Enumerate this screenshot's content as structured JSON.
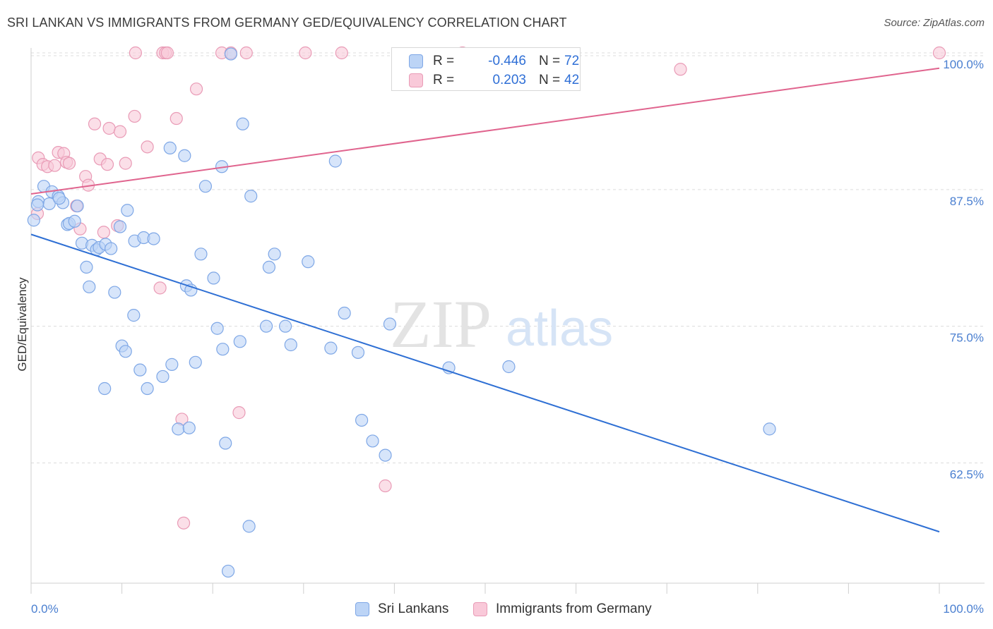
{
  "header": {
    "title": "SRI LANKAN VS IMMIGRANTS FROM GERMANY GED/EQUIVALENCY CORRELATION CHART",
    "source": "Source: ZipAtlas.com"
  },
  "watermark": {
    "zip": "ZIP",
    "atlas": "atlas"
  },
  "stats_legend": [
    {
      "r_label": "R =",
      "r_value": "-0.446",
      "n_label": "N =",
      "n_value": "72"
    },
    {
      "r_label": "R =",
      "r_value": "0.203",
      "n_label": "N =",
      "n_value": "42"
    }
  ],
  "bottom_legend": [
    {
      "label": "Sri Lankans"
    },
    {
      "label": "Immigrants from Germany"
    }
  ],
  "colors": {
    "blue_fill": "#bcd4f6",
    "blue_stroke": "#7ea7e6",
    "blue_line": "#2e6fd4",
    "pink_fill": "#f9c9d9",
    "pink_stroke": "#e99bb6",
    "pink_line": "#e0648e",
    "tick_label": "#4a7fd0"
  },
  "chart_data": {
    "type": "scatter",
    "title": "SRI LANKAN VS IMMIGRANTS FROM GERMANY GED/EQUIVALENCY CORRELATION CHART",
    "xlabel": "",
    "ylabel": "GED/Equivalency",
    "xlim": [
      0,
      100
    ],
    "ylim": [
      51.5,
      100
    ],
    "x_ticks": [
      "0.0%",
      "100.0%"
    ],
    "y_ticks": [
      {
        "value": 62.5,
        "label": "62.5%"
      },
      {
        "value": 75.0,
        "label": "75.0%"
      },
      {
        "value": 87.5,
        "label": "87.5%"
      },
      {
        "value": 100.0,
        "label": "100.0%"
      }
    ],
    "grid": "horizontal-dashed",
    "legend_position": "top-center",
    "series": [
      {
        "name": "Sri Lankans",
        "color": "#bcd4f6",
        "trend": {
          "x": [
            0,
            100
          ],
          "y": [
            83.4,
            56.2
          ]
        },
        "points": [
          [
            0.3,
            84.7
          ],
          [
            0.8,
            86.4
          ],
          [
            1.4,
            87.8
          ],
          [
            2.0,
            86.2
          ],
          [
            2.3,
            87.3
          ],
          [
            3.0,
            86.9
          ],
          [
            3.5,
            86.3
          ],
          [
            5.1,
            86.0
          ],
          [
            4.0,
            84.3
          ],
          [
            4.2,
            84.4
          ],
          [
            4.8,
            84.6
          ],
          [
            5.6,
            82.6
          ],
          [
            6.7,
            82.4
          ],
          [
            7.2,
            82.0
          ],
          [
            7.5,
            82.2
          ],
          [
            8.2,
            82.5
          ],
          [
            8.8,
            82.1
          ],
          [
            9.8,
            84.1
          ],
          [
            6.1,
            80.4
          ],
          [
            6.4,
            78.6
          ],
          [
            9.2,
            78.1
          ],
          [
            10.6,
            85.6
          ],
          [
            11.4,
            82.8
          ],
          [
            12.4,
            83.1
          ],
          [
            13.5,
            83.0
          ],
          [
            15.3,
            91.3
          ],
          [
            16.9,
            90.6
          ],
          [
            17.1,
            78.7
          ],
          [
            17.6,
            78.3
          ],
          [
            18.7,
            81.6
          ],
          [
            19.2,
            87.8
          ],
          [
            20.1,
            79.4
          ],
          [
            21.0,
            89.6
          ],
          [
            22.0,
            99.9
          ],
          [
            23.3,
            93.5
          ],
          [
            24.2,
            86.9
          ],
          [
            25.9,
            75.0
          ],
          [
            26.2,
            80.4
          ],
          [
            26.8,
            81.6
          ],
          [
            28.0,
            75.0
          ],
          [
            28.6,
            73.3
          ],
          [
            30.5,
            80.9
          ],
          [
            33.0,
            73.0
          ],
          [
            33.5,
            90.1
          ],
          [
            34.5,
            76.2
          ],
          [
            36.0,
            72.6
          ],
          [
            39.5,
            75.2
          ],
          [
            11.3,
            76.0
          ],
          [
            10.0,
            73.2
          ],
          [
            10.4,
            72.7
          ],
          [
            12.0,
            71.0
          ],
          [
            12.8,
            69.3
          ],
          [
            14.5,
            70.4
          ],
          [
            15.5,
            71.5
          ],
          [
            18.1,
            71.7
          ],
          [
            21.1,
            72.9
          ],
          [
            23.0,
            73.6
          ],
          [
            20.5,
            74.8
          ],
          [
            8.1,
            69.3
          ],
          [
            16.2,
            65.6
          ],
          [
            17.4,
            65.7
          ],
          [
            21.4,
            64.3
          ],
          [
            36.4,
            66.4
          ],
          [
            37.6,
            64.5
          ],
          [
            39.0,
            63.2
          ],
          [
            46.0,
            71.2
          ],
          [
            52.6,
            71.3
          ],
          [
            81.3,
            65.6
          ],
          [
            24.0,
            56.7
          ],
          [
            21.7,
            52.6
          ],
          [
            0.7,
            86.1
          ],
          [
            3.1,
            86.7
          ]
        ]
      },
      {
        "name": "Immigrants from Germany",
        "color": "#f9c9d9",
        "trend": {
          "x": [
            0,
            100
          ],
          "y": [
            87.1,
            98.6
          ]
        },
        "points": [
          [
            0.7,
            85.3
          ],
          [
            0.8,
            90.4
          ],
          [
            1.3,
            89.8
          ],
          [
            1.8,
            89.6
          ],
          [
            2.6,
            89.7
          ],
          [
            3.0,
            90.9
          ],
          [
            3.6,
            90.8
          ],
          [
            3.9,
            90.0
          ],
          [
            4.2,
            89.9
          ],
          [
            5.0,
            86.0
          ],
          [
            5.4,
            83.9
          ],
          [
            6.0,
            88.7
          ],
          [
            6.3,
            87.9
          ],
          [
            7.0,
            93.5
          ],
          [
            7.6,
            90.3
          ],
          [
            8.0,
            83.6
          ],
          [
            8.4,
            89.8
          ],
          [
            8.6,
            93.1
          ],
          [
            9.5,
            84.2
          ],
          [
            9.8,
            92.8
          ],
          [
            10.4,
            89.9
          ],
          [
            11.4,
            94.2
          ],
          [
            12.8,
            91.4
          ],
          [
            14.5,
            100.0
          ],
          [
            14.2,
            78.5
          ],
          [
            14.8,
            100.0
          ],
          [
            15.0,
            100.0
          ],
          [
            16.0,
            94.0
          ],
          [
            16.6,
            66.5
          ],
          [
            16.8,
            57.0
          ],
          [
            18.2,
            96.7
          ],
          [
            21.0,
            100.0
          ],
          [
            22.0,
            100.0
          ],
          [
            22.9,
            67.1
          ],
          [
            23.7,
            100.0
          ],
          [
            30.2,
            100.0
          ],
          [
            34.2,
            100.0
          ],
          [
            39.0,
            60.4
          ],
          [
            47.5,
            100.0
          ],
          [
            11.5,
            100.0
          ],
          [
            71.5,
            98.5
          ],
          [
            100.0,
            100.0
          ]
        ]
      }
    ]
  }
}
